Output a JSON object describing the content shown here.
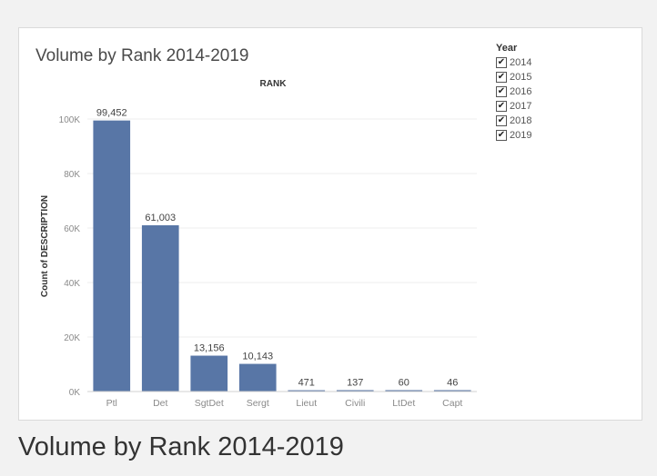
{
  "caption": "Volume by Rank 2014-2019",
  "colors": {
    "bar": "#5876a6",
    "grid": "#ececec",
    "axis_text": "#8a8a8a",
    "label_text": "#444444"
  },
  "legend": {
    "title": "Year",
    "items": [
      {
        "label": "2014",
        "checked": true
      },
      {
        "label": "2015",
        "checked": true
      },
      {
        "label": "2016",
        "checked": true
      },
      {
        "label": "2017",
        "checked": true
      },
      {
        "label": "2018",
        "checked": true
      },
      {
        "label": "2019",
        "checked": true
      }
    ],
    "check_glyph": "✔"
  },
  "chart_data": {
    "type": "bar",
    "title": "Volume by Rank 2014-2019",
    "column_header": "RANK",
    "ylabel": "Count of DESCRIPTION",
    "xlabel": "",
    "categories": [
      "Ptl",
      "Det",
      "SgtDet",
      "Sergt",
      "Lieut",
      "Civili",
      "LtDet",
      "Capt"
    ],
    "values": [
      99452,
      61003,
      13156,
      10143,
      471,
      137,
      60,
      46
    ],
    "value_labels": [
      "99,452",
      "61,003",
      "13,156",
      "10,143",
      "471",
      "137",
      "60",
      "46"
    ],
    "ylim": [
      0,
      110000
    ],
    "yticks": [
      0,
      20000,
      40000,
      60000,
      80000,
      100000
    ],
    "ytick_labels": [
      "0K",
      "20K",
      "40K",
      "60K",
      "80K",
      "100K"
    ],
    "grid": true,
    "legend_position": "top-right"
  }
}
